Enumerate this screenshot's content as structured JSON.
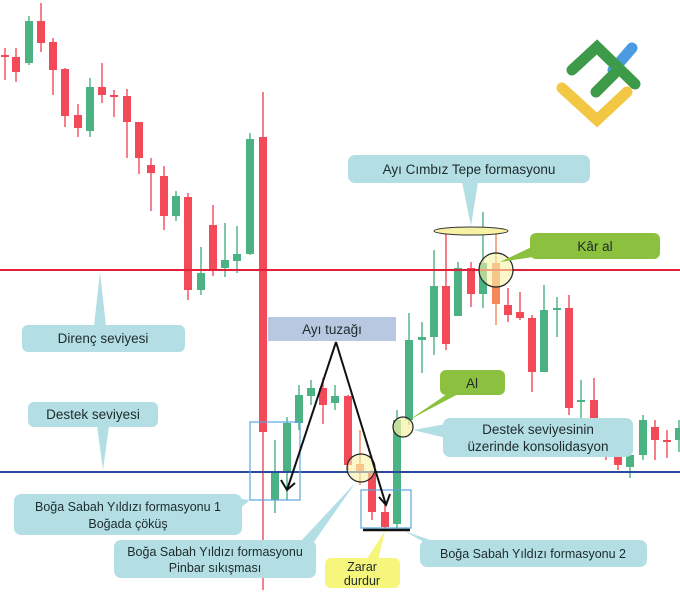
{
  "colors": {
    "bullish": "#4ab283",
    "bearish": "#f24a59",
    "resistance_line": "#e3203a",
    "support_line": "#2b4a9c",
    "callout": "#b3dfe4",
    "callout_green": "#8cc13f",
    "callout_yellow": "#f6f57c",
    "callout_trap": "#b9c8e1",
    "highlight": "#f7f1a6"
  },
  "logo": {
    "icon": "brand-logo-icon",
    "colors": [
      "#3d9a48",
      "#f2c744",
      "#4a9be0"
    ]
  },
  "annotations": {
    "tweezer_top": "Ayı Cımbız Tepe formasyonu",
    "take_profit": "Kâr al",
    "resistance": "Direnç seviyesi",
    "support": "Destek seviyesi",
    "bear_trap": "Ayı tuzağı",
    "buy": "Al",
    "consolidation_line1": "Destek seviyesinin",
    "consolidation_line2": "üzerinde konsolidasyon",
    "morning_star_1_line1": "Boğa Sabah Yıldızı formasyonu 1",
    "morning_star_1_line2": "Boğada çöküş",
    "morning_star_pinbar_line1": "Boğa Sabah Yıldızı formasyonu",
    "morning_star_pinbar_line2": "Pinbar sıkışması",
    "stop_loss_line1": "Zarar",
    "stop_loss_line2": "durdur",
    "morning_star_2": "Boğa Sabah Yıldızı formasyonu 2"
  }
}
